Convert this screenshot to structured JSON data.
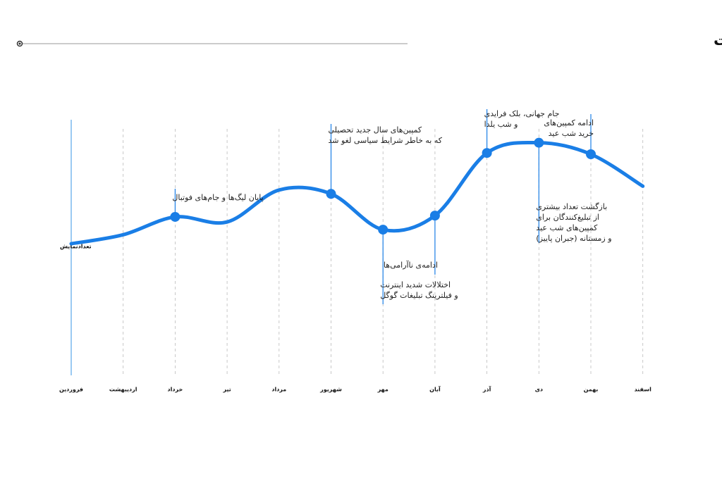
{
  "chart_data": {
    "type": "line",
    "title": "تاثیر مناسبت‌ها و رویدادها بر تعداد نمایش تبلیغات",
    "y_label": "تعدادنمایش",
    "categories": [
      "فروردین",
      "اردیبهشت",
      "خرداد",
      "تیر",
      "مرداد",
      "شهریور",
      "مهر",
      "آبان",
      "آذر",
      "دی",
      "بهمن",
      "اسفند"
    ],
    "series": [
      {
        "name": "تعدادنمایش",
        "color": "#1a7ee6",
        "values": [
          51.5,
          55,
          62,
          60,
          72.5,
          71,
          57,
          62.5,
          87,
          91,
          86.5,
          74
        ]
      }
    ],
    "ylim": [
      0,
      100
    ],
    "annotations": [
      [
        "پایان لیگ‌ها و جام‌های فوتبال"
      ],
      [
        "کمپین‌های سال جدید تحصیلی",
        "که به خاطر شرایط سیاسی لغو شد"
      ],
      [
        "اختلالات شدید اینترنت",
        "و فیلترینگ تبلیغات گوگل"
      ],
      [
        "ادامه‌ی ناآرامی‌ها"
      ],
      [
        "جام جهانی، بلک فرایدی",
        "و شب یلدا"
      ],
      [
        "بازگشت تعداد بیشتری",
        "از تبلیغ‌کنندگان برای",
        "کمپین‌های شب عید",
        "و زمستانه (جبران پاییز)"
      ],
      [
        "ادامه کمپین‌های",
        "خرید شب عید"
      ]
    ]
  }
}
